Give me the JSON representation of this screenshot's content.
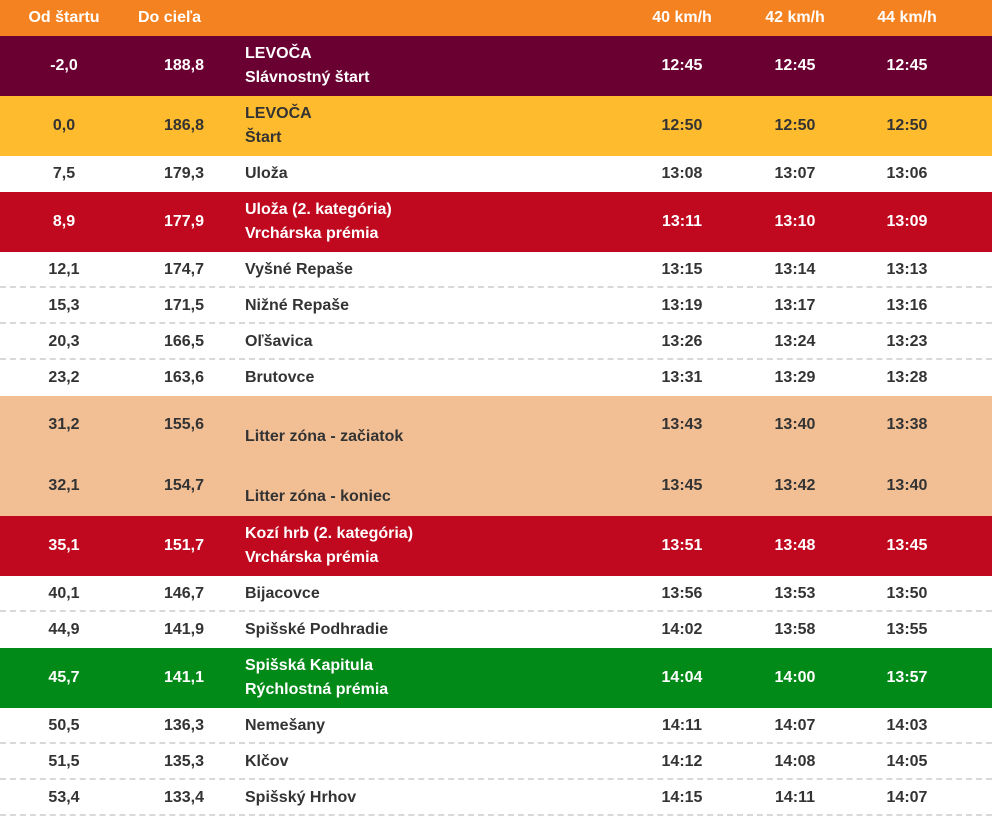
{
  "header": {
    "col_start": "Od štartu",
    "col_finish": "Do cieľa",
    "col_t40": "40 km/h",
    "col_t42": "42 km/h",
    "col_t44": "44 km/h",
    "bg": "#f58220"
  },
  "colors": {
    "ceremonial": "#6a0032",
    "start": "#fdbb2d",
    "climb": "#c0091f",
    "litter": "#f2be94",
    "sprint": "#028a18",
    "plain": "#ffffff"
  },
  "rows": [
    {
      "start": "-2,0",
      "finish": "188,8",
      "name": "LEVOČA",
      "note": "Slávnostný štart",
      "t40": "12:45",
      "t42": "12:45",
      "t44": "12:45"
    },
    {
      "start": "0,0",
      "finish": "186,8",
      "name": "LEVOČA",
      "note": "Štart",
      "t40": "12:50",
      "t42": "12:50",
      "t44": "12:50"
    },
    {
      "start": "7,5",
      "finish": "179,3",
      "name": "Uloža",
      "t40": "13:08",
      "t42": "13:07",
      "t44": "13:06"
    },
    {
      "start": "8,9",
      "finish": "177,9",
      "name": "Uloža (2. kategória)",
      "note": "Vrchárska prémia",
      "t40": "13:11",
      "t42": "13:10",
      "t44": "13:09"
    },
    {
      "start": "12,1",
      "finish": "174,7",
      "name": "Vyšné Repaše",
      "t40": "13:15",
      "t42": "13:14",
      "t44": "13:13"
    },
    {
      "start": "15,3",
      "finish": "171,5",
      "name": "Nižné Repaše",
      "t40": "13:19",
      "t42": "13:17",
      "t44": "13:16"
    },
    {
      "start": "20,3",
      "finish": "166,5",
      "name": "Oľšavica",
      "t40": "13:26",
      "t42": "13:24",
      "t44": "13:23"
    },
    {
      "start": "23,2",
      "finish": "163,6",
      "name": "Brutovce",
      "t40": "13:31",
      "t42": "13:29",
      "t44": "13:28"
    },
    {
      "start": "31,2",
      "finish": "155,6",
      "name": "Litter zóna - začiatok",
      "t40": "13:43",
      "t42": "13:40",
      "t44": "13:38"
    },
    {
      "start": "32,1",
      "finish": "154,7",
      "name": "Litter zóna - koniec",
      "t40": "13:45",
      "t42": "13:42",
      "t44": "13:40"
    },
    {
      "start": "35,1",
      "finish": "151,7",
      "name": "Kozí hrb (2. kategória)",
      "note": "Vrchárska prémia",
      "t40": "13:51",
      "t42": "13:48",
      "t44": "13:45"
    },
    {
      "start": "40,1",
      "finish": "146,7",
      "name": "Bijacovce",
      "t40": "13:56",
      "t42": "13:53",
      "t44": "13:50"
    },
    {
      "start": "44,9",
      "finish": "141,9",
      "name": "Spišské Podhradie",
      "t40": "14:02",
      "t42": "13:58",
      "t44": "13:55"
    },
    {
      "start": "45,7",
      "finish": "141,1",
      "name": "Spišská Kapitula",
      "note": "Rýchlostná prémia",
      "t40": "14:04",
      "t42": "14:00",
      "t44": "13:57"
    },
    {
      "start": "50,5",
      "finish": "136,3",
      "name": "Nemešany",
      "t40": "14:11",
      "t42": "14:07",
      "t44": "14:03"
    },
    {
      "start": "51,5",
      "finish": "135,3",
      "name": "Klčov",
      "t40": "14:12",
      "t42": "14:08",
      "t44": "14:05"
    },
    {
      "start": "53,4",
      "finish": "133,4",
      "name": "Spišský Hrhov",
      "t40": "14:15",
      "t42": "14:11",
      "t44": "14:07"
    }
  ]
}
